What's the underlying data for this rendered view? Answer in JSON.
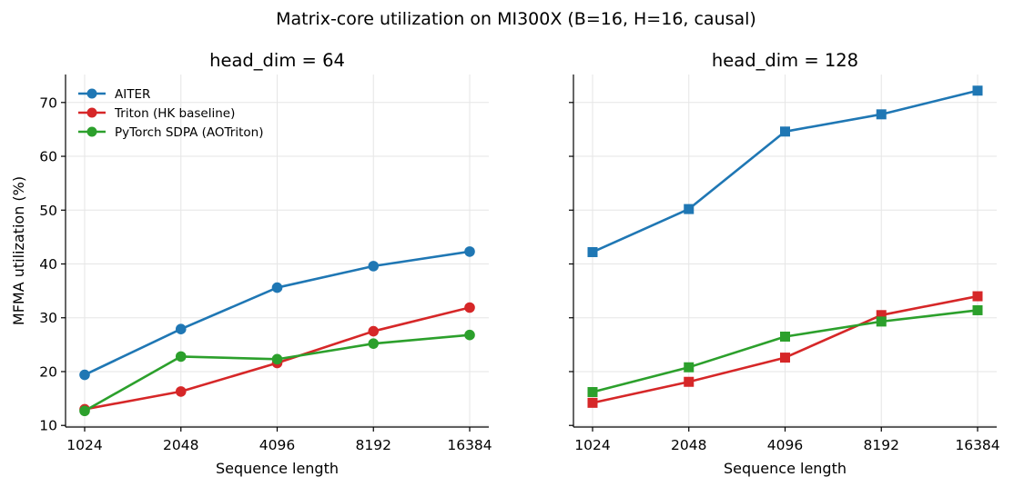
{
  "figure": {
    "suptitle": "Matrix-core utilization on MI300X (B=16, H=16, causal)"
  },
  "chart_data": [
    {
      "type": "line",
      "title": "head_dim = 64",
      "xlabel": "Sequence length",
      "ylabel": "MFMA utilization (%)",
      "x": [
        "1024",
        "2048",
        "4096",
        "8192",
        "16384"
      ],
      "xscale": "log2",
      "ylim": [
        9.7,
        75.2
      ],
      "yticks": [
        10,
        20,
        30,
        40,
        50,
        60,
        70
      ],
      "grid": true,
      "legend": "top-left",
      "marker": "circle",
      "series": [
        {
          "name": "AITER",
          "color": "#1f77b4",
          "values": [
            19.4,
            27.9,
            35.6,
            39.6,
            42.3
          ]
        },
        {
          "name": "Triton (HK baseline)",
          "color": "#d62728",
          "values": [
            13.0,
            16.3,
            21.6,
            27.5,
            31.9
          ]
        },
        {
          "name": "PyTorch SDPA (AOTriton)",
          "color": "#2ca02c",
          "values": [
            12.7,
            22.8,
            22.3,
            25.2,
            26.8
          ]
        }
      ]
    },
    {
      "type": "line",
      "title": "head_dim = 128",
      "xlabel": "Sequence length",
      "ylabel": "",
      "x": [
        "1024",
        "2048",
        "4096",
        "8192",
        "16384"
      ],
      "xscale": "log2",
      "ylim": [
        9.7,
        75.2
      ],
      "yticks": [
        10,
        20,
        30,
        40,
        50,
        60,
        70
      ],
      "ytick_labels_shown": false,
      "grid": true,
      "marker": "square",
      "series": [
        {
          "name": "AITER",
          "color": "#1f77b4",
          "values": [
            42.2,
            50.2,
            64.6,
            67.8,
            72.2
          ]
        },
        {
          "name": "Triton (HK baseline)",
          "color": "#d62728",
          "values": [
            14.2,
            18.1,
            22.6,
            30.5,
            34.0
          ]
        },
        {
          "name": "PyTorch SDPA (AOTriton)",
          "color": "#2ca02c",
          "values": [
            16.2,
            20.8,
            26.5,
            29.3,
            31.4
          ]
        }
      ]
    }
  ]
}
